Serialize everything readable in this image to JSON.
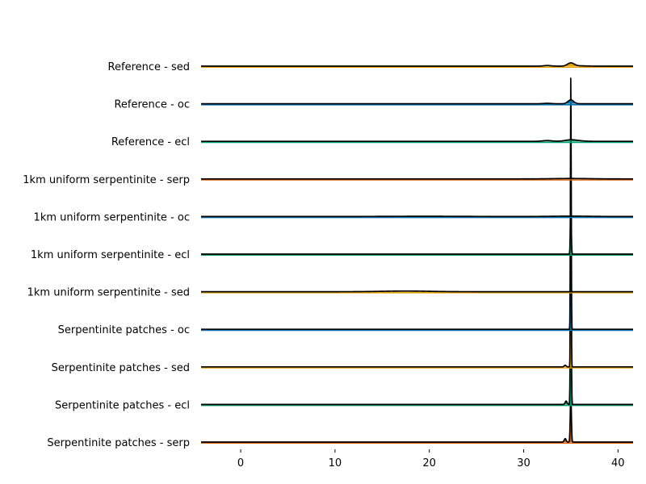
{
  "chart_data": {
    "type": "area",
    "subtype": "ridgeline",
    "title": "",
    "xlabel": "",
    "ylabel": "",
    "xlim": [
      -4.2,
      41.6
    ],
    "x_ticks": [
      0,
      10,
      20,
      30,
      40
    ],
    "grid": false,
    "legend": "none",
    "series": [
      {
        "name": "Reference - sed",
        "color": "#E69F00",
        "peaks": [
          {
            "x": 32.5,
            "height": 0.15,
            "width": 0.4
          },
          {
            "x": 35.0,
            "height": 0.75,
            "width": 0.35
          },
          {
            "x": 36.0,
            "height": 0.08,
            "width": 0.6
          }
        ]
      },
      {
        "name": "Reference - oc",
        "color": "#0072B2",
        "peaks": [
          {
            "x": 32.5,
            "height": 0.1,
            "width": 0.4
          },
          {
            "x": 35.0,
            "height": 0.9,
            "width": 0.3
          }
        ]
      },
      {
        "name": "Reference - ecl",
        "color": "#009E73",
        "peaks": [
          {
            "x": 32.5,
            "height": 0.18,
            "width": 0.5
          },
          {
            "x": 35.0,
            "height": 0.35,
            "width": 0.6
          },
          {
            "x": 36.0,
            "height": 0.08,
            "width": 0.6
          }
        ]
      },
      {
        "name": "1km uniform serpentinite - serp",
        "color": "#D55E00",
        "peaks": [
          {
            "x": 35.0,
            "height": 0.1,
            "width": 2.0
          }
        ]
      },
      {
        "name": "1km uniform serpentinite - oc",
        "color": "#0072B2",
        "peaks": [
          {
            "x": 19.5,
            "height": 0.05,
            "width": 4.0
          },
          {
            "x": 35.0,
            "height": 0.08,
            "width": 2.0
          }
        ]
      },
      {
        "name": "1km uniform serpentinite - ecl",
        "color": "#009E73",
        "peaks": [
          {
            "x": 35.0,
            "height": 11.5,
            "width": 0.05
          }
        ]
      },
      {
        "name": "1km uniform serpentinite - sed",
        "color": "#E69F00",
        "peaks": [
          {
            "x": 17.5,
            "height": 0.15,
            "width": 2.5
          }
        ]
      },
      {
        "name": "Serpentinite patches - oc",
        "color": "#0072B2",
        "peaks": [
          {
            "x": 35.0,
            "height": 60.0,
            "width": 0.04
          }
        ]
      },
      {
        "name": "Serpentinite patches - sed",
        "color": "#E69F00",
        "peaks": [
          {
            "x": 35.0,
            "height": 55.0,
            "width": 0.04
          },
          {
            "x": 34.4,
            "height": 0.4,
            "width": 0.1
          }
        ]
      },
      {
        "name": "Serpentinite patches - ecl",
        "color": "#009E73",
        "peaks": [
          {
            "x": 35.0,
            "height": 40.0,
            "width": 0.05
          },
          {
            "x": 34.5,
            "height": 0.8,
            "width": 0.1
          }
        ]
      },
      {
        "name": "Serpentinite patches - serp",
        "color": "#D55E00",
        "peaks": [
          {
            "x": 35.0,
            "height": 11.0,
            "width": 0.06
          },
          {
            "x": 34.4,
            "height": 0.8,
            "width": 0.1
          }
        ]
      }
    ]
  }
}
